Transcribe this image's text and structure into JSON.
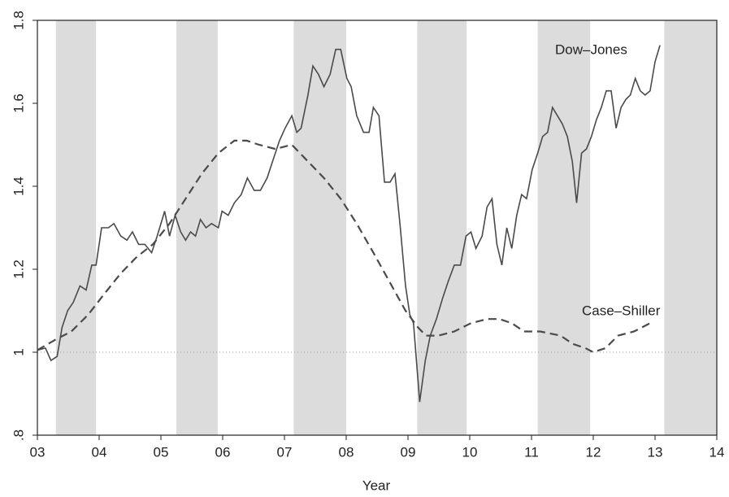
{
  "chart_data": {
    "type": "line",
    "x_label": "Year",
    "xlim": [
      3,
      14
    ],
    "xticks": [
      {
        "value": 3,
        "label": "03"
      },
      {
        "value": 4,
        "label": "04"
      },
      {
        "value": 5,
        "label": "05"
      },
      {
        "value": 6,
        "label": "06"
      },
      {
        "value": 7,
        "label": "07"
      },
      {
        "value": 8,
        "label": "08"
      },
      {
        "value": 9,
        "label": "09"
      },
      {
        "value": 10,
        "label": "10"
      },
      {
        "value": 11,
        "label": "11"
      },
      {
        "value": 12,
        "label": "12"
      },
      {
        "value": 13,
        "label": "13"
      },
      {
        "value": 14,
        "label": "14"
      }
    ],
    "ylim": [
      0.8,
      1.8
    ],
    "yticks": [
      {
        "value": 0.8,
        "label": ".8"
      },
      1,
      1.2,
      1.4,
      1.6,
      1.8
    ],
    "reference_line": 1,
    "shaded_bands": [
      [
        3.3,
        3.95
      ],
      [
        5.25,
        5.92
      ],
      [
        7.15,
        8.0
      ],
      [
        9.15,
        9.95
      ],
      [
        11.1,
        11.95
      ],
      [
        13.15,
        14
      ]
    ],
    "series": [
      {
        "name": "Dow–Jones",
        "color": "#4a4a4a",
        "style": "solid",
        "x": [
          3.0,
          3.13,
          3.22,
          3.32,
          3.4,
          3.49,
          3.58,
          3.69,
          3.79,
          3.88,
          3.95,
          4.04,
          4.15,
          4.24,
          4.35,
          4.45,
          4.54,
          4.64,
          4.74,
          4.85,
          4.94,
          5.06,
          5.14,
          5.23,
          5.32,
          5.4,
          5.48,
          5.56,
          5.64,
          5.73,
          5.82,
          5.93,
          5.99,
          6.09,
          6.19,
          6.3,
          6.4,
          6.51,
          6.61,
          6.72,
          6.83,
          6.92,
          7.01,
          7.12,
          7.2,
          7.27,
          7.38,
          7.46,
          7.55,
          7.64,
          7.74,
          7.83,
          7.91,
          8.01,
          8.08,
          8.17,
          8.28,
          8.37,
          8.44,
          8.53,
          8.62,
          8.71,
          8.79,
          8.87,
          8.96,
          9.03,
          9.09,
          9.19,
          9.28,
          9.36,
          9.46,
          9.56,
          9.65,
          9.75,
          9.85,
          9.94,
          10.02,
          10.1,
          10.2,
          10.28,
          10.36,
          10.44,
          10.52,
          10.6,
          10.68,
          10.76,
          10.84,
          10.92,
          11.01,
          11.1,
          11.18,
          11.26,
          11.34,
          11.42,
          11.5,
          11.58,
          11.66,
          11.73,
          11.81,
          11.89,
          11.97,
          12.05,
          12.13,
          12.21,
          12.29,
          12.37,
          12.45,
          12.53,
          12.6,
          12.68,
          12.76,
          12.84,
          12.92,
          13.0,
          13.08
        ],
        "values": [
          1.005,
          1.01,
          0.98,
          0.99,
          1.06,
          1.1,
          1.12,
          1.16,
          1.15,
          1.21,
          1.21,
          1.3,
          1.3,
          1.31,
          1.28,
          1.27,
          1.29,
          1.26,
          1.26,
          1.24,
          1.28,
          1.34,
          1.28,
          1.33,
          1.29,
          1.27,
          1.29,
          1.28,
          1.32,
          1.3,
          1.31,
          1.3,
          1.34,
          1.33,
          1.36,
          1.38,
          1.42,
          1.39,
          1.39,
          1.42,
          1.47,
          1.51,
          1.54,
          1.57,
          1.53,
          1.54,
          1.62,
          1.69,
          1.67,
          1.64,
          1.67,
          1.73,
          1.73,
          1.66,
          1.64,
          1.57,
          1.53,
          1.53,
          1.59,
          1.57,
          1.41,
          1.41,
          1.43,
          1.31,
          1.16,
          1.09,
          1.07,
          0.88,
          0.98,
          1.04,
          1.08,
          1.13,
          1.17,
          1.21,
          1.21,
          1.28,
          1.29,
          1.25,
          1.28,
          1.35,
          1.37,
          1.26,
          1.21,
          1.3,
          1.25,
          1.33,
          1.38,
          1.37,
          1.44,
          1.48,
          1.52,
          1.53,
          1.59,
          1.57,
          1.55,
          1.52,
          1.46,
          1.36,
          1.48,
          1.49,
          1.52,
          1.56,
          1.59,
          1.63,
          1.63,
          1.54,
          1.59,
          1.61,
          1.62,
          1.66,
          1.63,
          1.62,
          1.63,
          1.7,
          1.74
        ]
      },
      {
        "name": "Case–Shiller",
        "color": "#4a4a4a",
        "style": "dashed",
        "x": [
          3.0,
          3.29,
          3.55,
          3.82,
          4.08,
          4.35,
          4.61,
          4.87,
          5.14,
          5.4,
          5.66,
          5.93,
          6.19,
          6.39,
          6.59,
          6.85,
          7.12,
          7.38,
          7.64,
          7.91,
          8.17,
          8.44,
          8.7,
          8.96,
          9.16,
          9.29,
          9.49,
          9.75,
          10.02,
          10.28,
          10.48,
          10.68,
          10.88,
          11.14,
          11.47,
          11.67,
          11.87,
          12.0,
          12.2,
          12.4,
          12.66,
          12.92
        ],
        "values": [
          1.005,
          1.03,
          1.05,
          1.09,
          1.14,
          1.19,
          1.23,
          1.26,
          1.31,
          1.37,
          1.43,
          1.48,
          1.51,
          1.51,
          1.5,
          1.49,
          1.5,
          1.46,
          1.42,
          1.37,
          1.31,
          1.24,
          1.17,
          1.1,
          1.06,
          1.04,
          1.04,
          1.05,
          1.07,
          1.08,
          1.08,
          1.07,
          1.05,
          1.05,
          1.04,
          1.02,
          1.01,
          1.0,
          1.01,
          1.04,
          1.05,
          1.07
        ]
      }
    ]
  }
}
